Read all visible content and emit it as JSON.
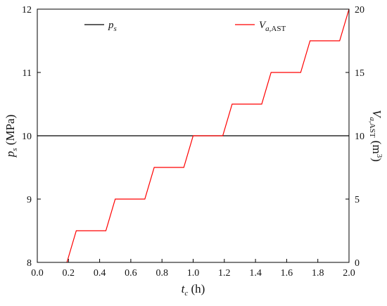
{
  "chart_data": {
    "type": "line",
    "title": "",
    "xlabel": {
      "base": "t",
      "sub": "c",
      "unit": " (h)"
    },
    "ylabel_left": {
      "base": "p",
      "sub": "s",
      "unit": " (MPa)"
    },
    "ylabel_right": {
      "base": "V",
      "sub_italic": "a",
      "sub_plain": ",AST",
      "unit_prefix": " (m",
      "unit_sup": "3",
      "unit_suffix": ")"
    },
    "xlim": [
      0.0,
      2.0
    ],
    "ylim_left": [
      8,
      12
    ],
    "ylim_right": [
      0,
      20
    ],
    "x_ticks": [
      "0.0",
      "0.2",
      "0.4",
      "0.6",
      "0.8",
      "1.0",
      "1.2",
      "1.4",
      "1.6",
      "1.8",
      "2.0"
    ],
    "y_left_ticks": [
      "8",
      "9",
      "10",
      "11",
      "12"
    ],
    "y_right_ticks": [
      "0",
      "5",
      "10",
      "15",
      "20"
    ],
    "grid": false,
    "legend": {
      "placement": "top",
      "entries": [
        {
          "base": "p",
          "sub": "s",
          "sub_plain": "",
          "color": "#000000"
        },
        {
          "base": "V",
          "sub": "a",
          "sub_plain": ",AST",
          "color": "#ff0000"
        }
      ]
    },
    "series": [
      {
        "axis": "left",
        "color": "#000000",
        "x": [
          0.0,
          2.0
        ],
        "y": [
          10,
          10
        ]
      },
      {
        "axis": "right",
        "color": "#ff0000",
        "x": [
          0.19,
          0.25,
          0.44,
          0.5,
          0.69,
          0.75,
          0.94,
          1.0,
          1.19,
          1.25,
          1.44,
          1.5,
          1.69,
          1.75,
          1.94,
          2.0
        ],
        "y": [
          0,
          2.5,
          2.5,
          5,
          5,
          7.5,
          7.5,
          10,
          10,
          12.5,
          12.5,
          15,
          15,
          17.5,
          17.5,
          20
        ]
      }
    ]
  }
}
